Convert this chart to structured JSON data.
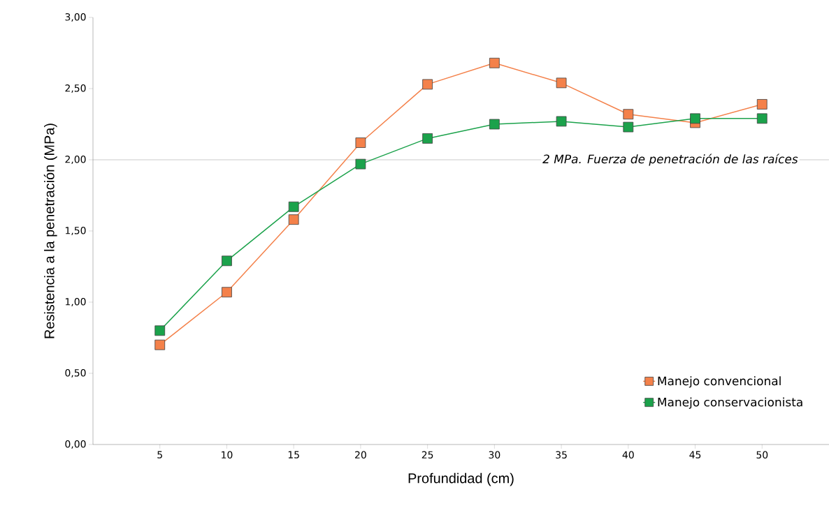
{
  "chart_data": {
    "type": "line",
    "xlabel": "Profundidad (cm)",
    "ylabel": "Resistencia a la penetración (MPa)",
    "x": [
      5,
      10,
      15,
      20,
      25,
      30,
      35,
      40,
      45,
      50
    ],
    "series": [
      {
        "name": "Manejo convencional",
        "color": "#f4814a",
        "values": [
          0.7,
          1.07,
          1.58,
          2.12,
          2.53,
          2.68,
          2.54,
          2.32,
          2.26,
          2.39
        ]
      },
      {
        "name": "Manejo conservacionista",
        "color": "#1ba24b",
        "values": [
          0.8,
          1.29,
          1.67,
          1.97,
          2.15,
          2.25,
          2.27,
          2.23,
          2.29,
          2.29
        ]
      }
    ],
    "xlim": [
      0,
      55
    ],
    "ylim": [
      0,
      3
    ],
    "xticks": [
      5,
      10,
      15,
      20,
      25,
      30,
      35,
      40,
      45,
      50
    ],
    "yticks": [
      {
        "value": 0,
        "label": "0,00"
      },
      {
        "value": 0.5,
        "label": "0,50"
      },
      {
        "value": 1,
        "label": "1,00"
      },
      {
        "value": 1.5,
        "label": "1,50"
      },
      {
        "value": 2,
        "label": "2,00"
      },
      {
        "value": 2.5,
        "label": "2,50"
      },
      {
        "value": 3,
        "label": "3,00"
      }
    ],
    "ref_lines": [
      {
        "axis": "y",
        "value": 2,
        "label": "2 MPa. Fuerza de penetración de las raíces",
        "color": "#7f7f7f"
      }
    ],
    "legend": "bottom right",
    "marker": "square",
    "line_style": "solid",
    "grid": false
  }
}
